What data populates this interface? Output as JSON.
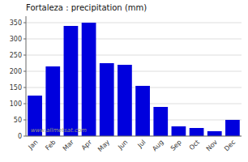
{
  "chart_data": {
    "type": "bar",
    "title": "Fortaleza : precipitation (mm)",
    "categories": [
      "Jan",
      "Feb",
      "Mar",
      "Apr",
      "May",
      "Jun",
      "Jul",
      "Aug",
      "Sep",
      "Oct",
      "Nov",
      "Dec"
    ],
    "values": [
      125,
      215,
      340,
      350,
      225,
      220,
      155,
      90,
      30,
      25,
      15,
      50
    ],
    "color": "#0000DD",
    "ylim": [
      0,
      370
    ],
    "yticks": [
      0,
      50,
      100,
      150,
      200,
      250,
      300,
      350
    ],
    "grid": true,
    "annotations": [
      "www.allmetsat.com"
    ]
  }
}
